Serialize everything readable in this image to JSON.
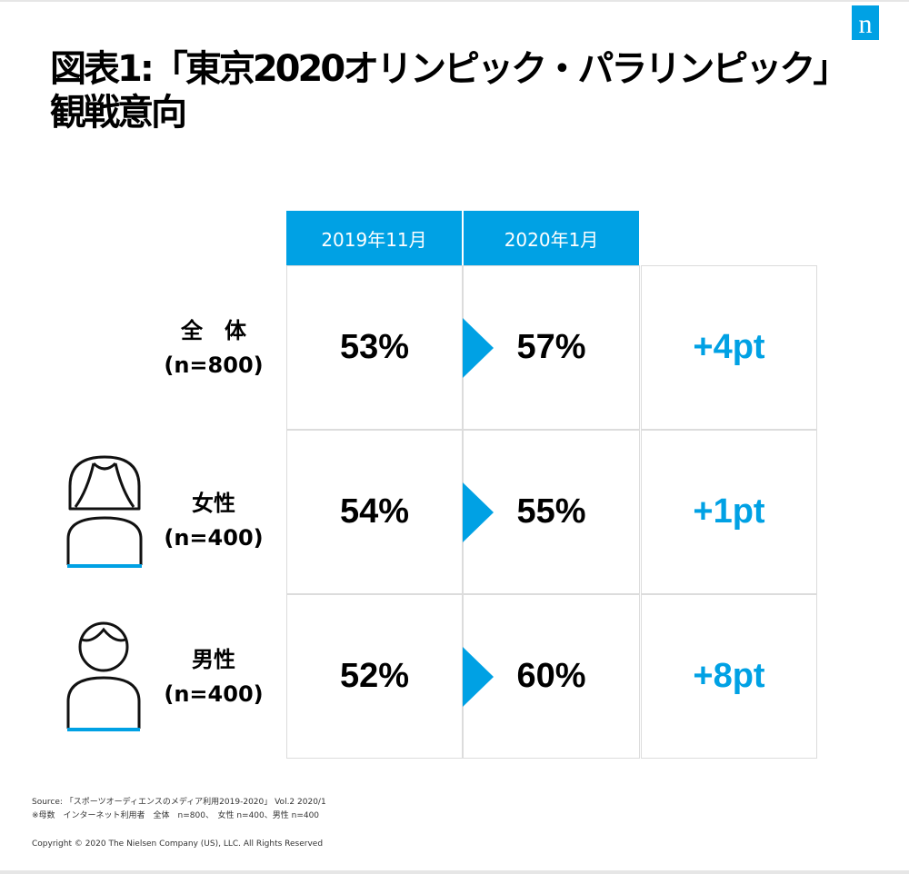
{
  "logo": "n",
  "title_lines": [
    "図表1:「東京2020オリンピック・パラリンピック」",
    "観戦意向"
  ],
  "chart_data": {
    "type": "table",
    "columns": [
      "2019年11月",
      "2020年1月"
    ],
    "rows": [
      {
        "label_top": "全　体",
        "label_n": "(n=800)",
        "values": [
          "53%",
          "57%"
        ],
        "diff": "+4pt"
      },
      {
        "label_top": "女性",
        "label_n": "(n=400)",
        "values": [
          "54%",
          "55%"
        ],
        "diff": "+1pt"
      },
      {
        "label_top": "男性",
        "label_n": "(n=400)",
        "values": [
          "52%",
          "60%"
        ],
        "diff": "+8pt"
      }
    ],
    "accent_color": "#00a1e4"
  },
  "footer": {
    "source": "Source: 「スポーツオーディエンスのメディア利用2019-2020」 Vol.2 2020/1",
    "note": "※母数　インターネット利用者　全体　n=800、　女性 n=400、男性 n=400",
    "copyright": "Copyright © 2020 The Nielsen Company (US), LLC. All Rights Reserved"
  }
}
